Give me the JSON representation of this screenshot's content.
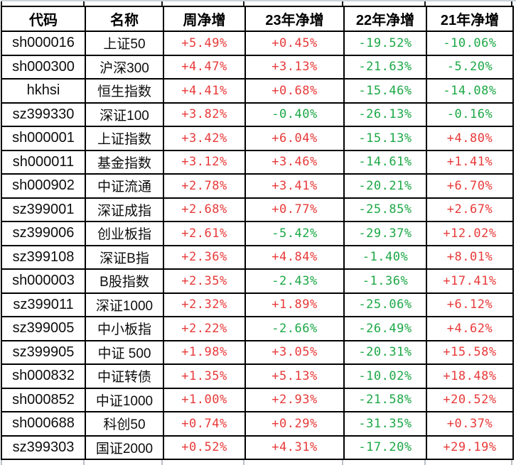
{
  "colors": {
    "positive": "#e83a3a",
    "negative": "#1ca846",
    "border": "#000000",
    "header_text": "#000000",
    "body_text": "#0d0d0d"
  },
  "chart_data": {
    "type": "table",
    "title": "",
    "columns": [
      "代码",
      "名称",
      "周净增",
      "23年净增",
      "22年净增",
      "21年净增"
    ],
    "column_keys": [
      "code",
      "name",
      "week-net-gain",
      "net-gain-2023",
      "net-gain-2022",
      "net-gain-2021"
    ],
    "rows": [
      [
        "sh000016",
        "上证50",
        "+5.49%",
        "+0.45%",
        "-19.52%",
        "-10.06%"
      ],
      [
        "sh000300",
        "沪深300",
        "+4.47%",
        "+3.13%",
        "-21.63%",
        "-5.20%"
      ],
      [
        "hkhsi",
        "恒生指数",
        "+4.41%",
        "+0.68%",
        "-15.46%",
        "-14.08%"
      ],
      [
        "sz399330",
        "深证100",
        "+3.82%",
        "-0.40%",
        "-26.13%",
        "-0.16%"
      ],
      [
        "sh000001",
        "上证指数",
        "+3.42%",
        "+6.04%",
        "-15.13%",
        "+4.80%"
      ],
      [
        "sh000011",
        "基金指数",
        "+3.12%",
        "+3.46%",
        "-14.61%",
        "+1.41%"
      ],
      [
        "sh000902",
        "中证流通",
        "+2.78%",
        "+3.41%",
        "-20.21%",
        "+6.70%"
      ],
      [
        "sz399001",
        "深证成指",
        "+2.68%",
        "+0.77%",
        "-25.85%",
        "+2.67%"
      ],
      [
        "sz399006",
        "创业板指",
        "+2.61%",
        "-5.42%",
        "-29.37%",
        "+12.02%"
      ],
      [
        "sz399108",
        "深证B指",
        "+2.36%",
        "+4.84%",
        "-1.40%",
        "+8.01%"
      ],
      [
        "sh000003",
        "B股指数",
        "+2.35%",
        "-2.43%",
        "-1.36%",
        "+17.41%"
      ],
      [
        "sz399011",
        "深证1000",
        "+2.32%",
        "+1.89%",
        "-25.06%",
        "+6.12%"
      ],
      [
        "sz399005",
        "中小板指",
        "+2.22%",
        "-2.66%",
        "-26.49%",
        "+4.62%"
      ],
      [
        "sz399905",
        "中证 500",
        "+1.98%",
        "+3.05%",
        "-20.31%",
        "+15.58%"
      ],
      [
        "sh000832",
        "中证转债",
        "+1.35%",
        "+5.13%",
        "-10.02%",
        "+18.48%"
      ],
      [
        "sh000852",
        "中证1000",
        "+1.00%",
        "+2.93%",
        "-21.58%",
        "+20.52%"
      ],
      [
        "sh000688",
        "科创50",
        "+0.74%",
        "+0.29%",
        "-31.35%",
        "+0.37%"
      ],
      [
        "sz399303",
        "国证2000",
        "+0.52%",
        "+4.31%",
        "-17.20%",
        "+29.19%"
      ]
    ],
    "value_color_rule": "values starting with + are red, values starting with - are green",
    "grid": true,
    "legend_position": "none"
  }
}
